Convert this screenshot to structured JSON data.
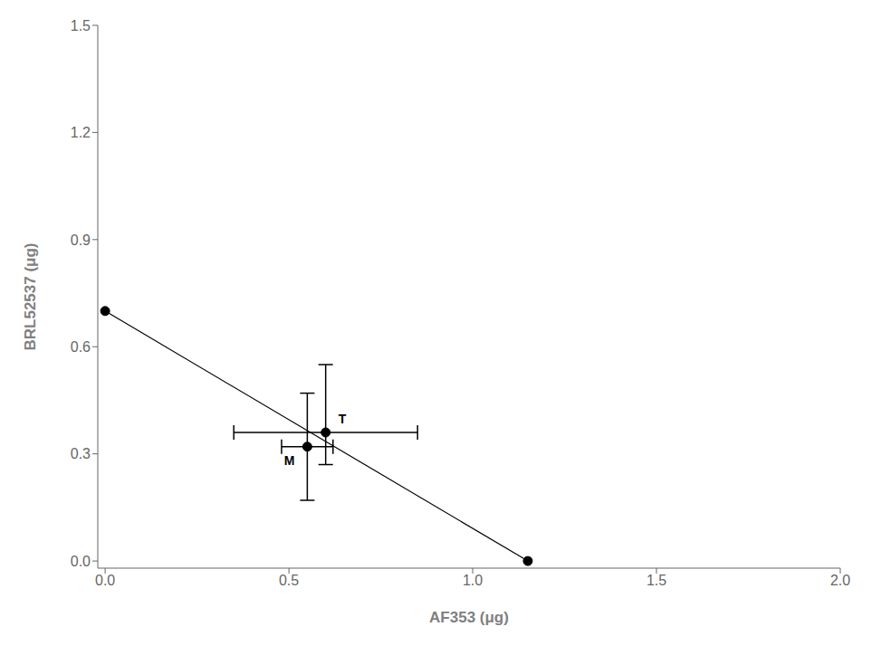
{
  "chart_data": {
    "type": "scatter",
    "xlabel": "AF353 (μg)",
    "ylabel": "BRL52537 (μg)",
    "xlim": [
      -0.02,
      2.0
    ],
    "ylim": [
      -0.02,
      1.5
    ],
    "xticks": [
      {
        "value": 0.0,
        "label": "0.0"
      },
      0.5,
      {
        "value": 1.0,
        "label": "1.0"
      },
      1.5,
      {
        "value": 2.0,
        "label": "2.0"
      }
    ],
    "yticks": [
      {
        "value": 0.0,
        "label": "0.0"
      },
      0.3,
      0.6,
      0.9,
      1.2,
      1.5
    ],
    "grid": false,
    "series": [
      {
        "type": "line",
        "marker": "circle",
        "color": "#000000",
        "x": [
          0.0,
          1.15
        ],
        "y": [
          0.7,
          0.0
        ]
      },
      {
        "type": "scatter",
        "marker": "circle",
        "color": "#000000",
        "labels": [
          "M",
          "T"
        ],
        "x": [
          0.55,
          0.6
        ],
        "y": [
          0.32,
          0.36
        ],
        "xerr": [
          0.07,
          0.25
        ],
        "yerr_lo": [
          0.15,
          0.09
        ],
        "yerr_hi": [
          0.15,
          0.19
        ]
      }
    ]
  }
}
